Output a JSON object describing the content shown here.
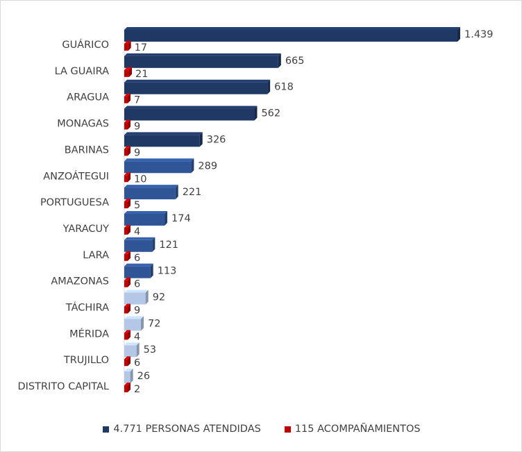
{
  "chart_data": {
    "type": "bar",
    "orientation": "horizontal",
    "categories": [
      "GUÁRICO",
      "LA GUAIRA",
      "ARAGUA",
      "MONAGAS",
      "BARINAS",
      "ANZOÁTEGUI",
      "PORTUGUESA",
      "YARACUY",
      "LARA",
      "AMAZONAS",
      "TÁCHIRA",
      "MÉRIDA",
      "TRUJILLO",
      "DISTRITO CAPITAL"
    ],
    "series": [
      {
        "name": "4.771 PERSONAS ATENDIDAS",
        "values": [
          1439,
          665,
          618,
          562,
          326,
          289,
          221,
          174,
          121,
          113,
          92,
          72,
          53,
          26
        ],
        "labels": [
          "1.439",
          "665",
          "618",
          "562",
          "326",
          "289",
          "221",
          "174",
          "121",
          "113",
          "92",
          "72",
          "53",
          "26"
        ],
        "bar_colors": [
          "#1f3864",
          "#1f3864",
          "#1f3864",
          "#1f3864",
          "#1f3864",
          "#2f5597",
          "#2f5597",
          "#2f5597",
          "#2f5597",
          "#2f5597",
          "#b4c7e7",
          "#b4c7e7",
          "#b4c7e7",
          "#b4c7e7"
        ],
        "legend_color": "#1f3864"
      },
      {
        "name": "115 ACOMPAÑAMIENTOS",
        "values": [
          17,
          21,
          7,
          9,
          9,
          10,
          5,
          4,
          6,
          6,
          9,
          4,
          6,
          2
        ],
        "labels": [
          "17",
          "21",
          "7",
          "9",
          "9",
          "10",
          "5",
          "4",
          "6",
          "6",
          "9",
          "4",
          "6",
          "2"
        ],
        "bar_colors": [
          "#c00000",
          "#c00000",
          "#c00000",
          "#c00000",
          "#c00000",
          "#c00000",
          "#c00000",
          "#c00000",
          "#c00000",
          "#c00000",
          "#c00000",
          "#c00000",
          "#c00000",
          "#c00000"
        ],
        "legend_color": "#c00000"
      }
    ],
    "xlim": [
      0,
      1439
    ],
    "grid": false,
    "legend_position": "bottom"
  }
}
